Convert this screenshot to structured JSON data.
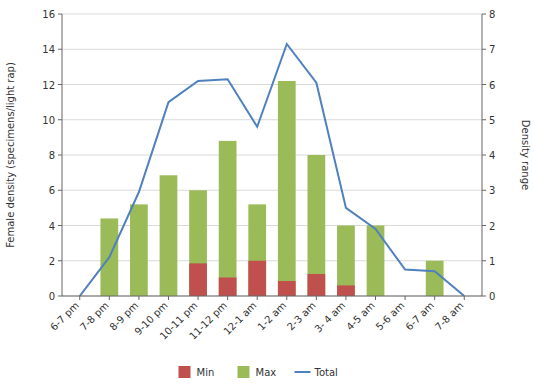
{
  "chart_data": {
    "type": "bar",
    "categories": [
      "6-7 pm",
      "7-8 pm",
      "8-9 pm",
      "9-10 pm",
      "10-11 pm",
      "11-12 pm",
      "12-1 am",
      "1-2 am",
      "2-3 am",
      "3- 4 am",
      "4-5 am",
      "5-6 am",
      "6-7 am",
      "7-8 am"
    ],
    "series": [
      {
        "name": "Min",
        "color": "#c0504d",
        "values": [
          0,
          0,
          0,
          0,
          1.85,
          1.05,
          2.0,
          0.85,
          1.25,
          0.6,
          0,
          0,
          0,
          0
        ]
      },
      {
        "name": "Max",
        "color": "#9bbb59",
        "values": [
          0,
          4.4,
          5.2,
          6.85,
          6.0,
          8.8,
          5.2,
          12.2,
          8.0,
          4.0,
          4.0,
          0,
          2.0,
          0
        ]
      },
      {
        "name": "Total",
        "color": "#4f81bd",
        "type": "line",
        "axis": "y2",
        "values": [
          0,
          1.1,
          2.95,
          5.5,
          6.1,
          6.15,
          4.8,
          7.15,
          6.05,
          2.5,
          1.9,
          0.75,
          0.7,
          0.0
        ]
      }
    ],
    "ylabel": "Female density (specimens/light rap)",
    "y2label": "Density range",
    "ylim": [
      0,
      16
    ],
    "yticks": [
      0,
      2,
      4,
      6,
      8,
      10,
      12,
      14,
      16
    ],
    "y2lim": [
      0,
      8
    ],
    "y2ticks": [
      0,
      1,
      2,
      3,
      4,
      5,
      6,
      7,
      8
    ],
    "grid": true,
    "legend": "bottom"
  }
}
